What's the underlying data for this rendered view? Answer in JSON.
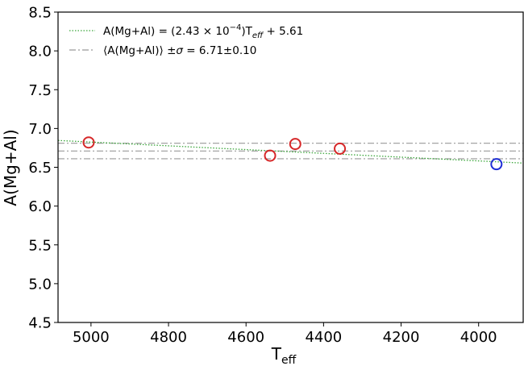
{
  "chart_data": {
    "type": "scatter",
    "x_label": [
      "T",
      "eff"
    ],
    "y_label": "A(Mg+Al)",
    "xlim": [
      5085,
      3885
    ],
    "ylim": [
      4.5,
      8.5
    ],
    "xticks": [
      5000,
      4800,
      4600,
      4400,
      4200,
      4000
    ],
    "yticks": [
      4.5,
      {
        "value": 5,
        "label": "5.0"
      },
      5.5,
      {
        "value": 6,
        "label": "6.0"
      },
      6.5,
      {
        "value": 7,
        "label": "7.0"
      },
      7.5,
      {
        "value": 8,
        "label": "8.0"
      },
      8.5
    ],
    "series": [
      {
        "color": "#d62728",
        "x": [
          5006,
          4538,
          4473,
          4358
        ],
        "values": [
          6.82,
          6.65,
          6.8,
          6.74
        ]
      },
      {
        "color": "#1f2fd6",
        "x": [
          3954
        ],
        "values": [
          6.54
        ]
      }
    ],
    "fit": {
      "label": [
        "A(Mg+Al) = (2.43 × 10",
        "−4",
        ")T",
        "eff",
        " + 5.61"
      ],
      "slope": 0.000243,
      "intercept": 5.61,
      "color": "#3aa63a"
    },
    "mean": {
      "label": [
        "⟨A(Mg+Al)⟩ ±",
        "σ",
        "  = 6.71±0.10"
      ],
      "value": 6.71,
      "sigma": 0.1,
      "color": "#999999"
    }
  }
}
